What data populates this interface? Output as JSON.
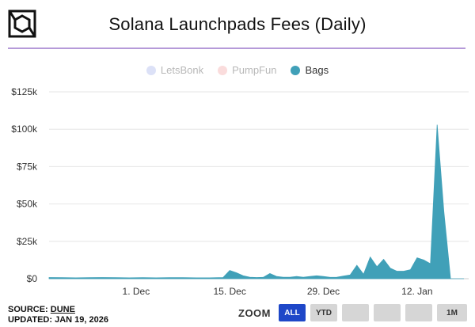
{
  "header": {
    "title": "Solana Launchpads Fees (Daily)"
  },
  "legend": [
    {
      "label": "LetsBonk",
      "color": "#9aa8e8",
      "active": false
    },
    {
      "label": "PumpFun",
      "color": "#f29a9a",
      "active": false
    },
    {
      "label": "Bags",
      "color": "#40a0b8",
      "active": true
    }
  ],
  "footer": {
    "source_prefix": "SOURCE: ",
    "source_link": "DUNE",
    "updated": "UPDATED: JAN 19, 2026"
  },
  "zoom": {
    "label": "ZOOM",
    "buttons": [
      {
        "label": "ALL",
        "active": true
      },
      {
        "label": "YTD",
        "active": false
      },
      {
        "label": "",
        "active": false
      },
      {
        "label": "",
        "active": false
      },
      {
        "label": "",
        "active": false
      },
      {
        "label": "1M",
        "active": false
      }
    ]
  },
  "chart_data": {
    "type": "area",
    "title": "Solana Launchpads Fees (Daily)",
    "xlabel": "",
    "ylabel": "",
    "ylim": [
      0,
      125000
    ],
    "yticks": [
      0,
      25000,
      50000,
      75000,
      100000,
      125000
    ],
    "ytick_labels": [
      "$0",
      "$25k",
      "$50k",
      "$75k",
      "$100k",
      "$125k"
    ],
    "xlim": [
      "2025-11-18",
      "2026-01-19"
    ],
    "xticks": [
      "2025-12-01",
      "2025-12-15",
      "2025-12-29",
      "2026-01-12"
    ],
    "xtick_labels": [
      "1. Dec",
      "15. Dec",
      "29. Dec",
      "12. Jan"
    ],
    "grid": true,
    "legend_position": "top-center",
    "series": [
      {
        "name": "Bags",
        "color": "#40a0b8",
        "x": [
          "2025-11-18",
          "2025-11-20",
          "2025-11-22",
          "2025-11-24",
          "2025-11-26",
          "2025-11-28",
          "2025-11-30",
          "2025-12-02",
          "2025-12-04",
          "2025-12-06",
          "2025-12-08",
          "2025-12-10",
          "2025-12-12",
          "2025-12-14",
          "2025-12-15",
          "2025-12-16",
          "2025-12-17",
          "2025-12-18",
          "2025-12-19",
          "2025-12-20",
          "2025-12-21",
          "2025-12-22",
          "2025-12-23",
          "2025-12-24",
          "2025-12-25",
          "2025-12-26",
          "2025-12-27",
          "2025-12-28",
          "2025-12-29",
          "2025-12-30",
          "2025-12-31",
          "2026-01-01",
          "2026-01-02",
          "2026-01-03",
          "2026-01-04",
          "2026-01-05",
          "2026-01-06",
          "2026-01-07",
          "2026-01-08",
          "2026-01-09",
          "2026-01-10",
          "2026-01-11",
          "2026-01-12",
          "2026-01-13",
          "2026-01-14",
          "2026-01-15",
          "2026-01-16",
          "2026-01-17",
          "2026-01-18",
          "2026-01-19"
        ],
        "values": [
          800,
          700,
          600,
          700,
          800,
          700,
          600,
          700,
          600,
          700,
          700,
          600,
          600,
          800,
          5500,
          4000,
          2000,
          1000,
          800,
          900,
          3500,
          1500,
          1000,
          1000,
          1500,
          1000,
          1500,
          2000,
          1500,
          900,
          1000,
          1800,
          2500,
          9000,
          3000,
          14500,
          8000,
          13000,
          7000,
          5000,
          5000,
          6000,
          14000,
          12500,
          10000,
          103000,
          45000,
          0,
          0,
          0
        ]
      }
    ]
  }
}
